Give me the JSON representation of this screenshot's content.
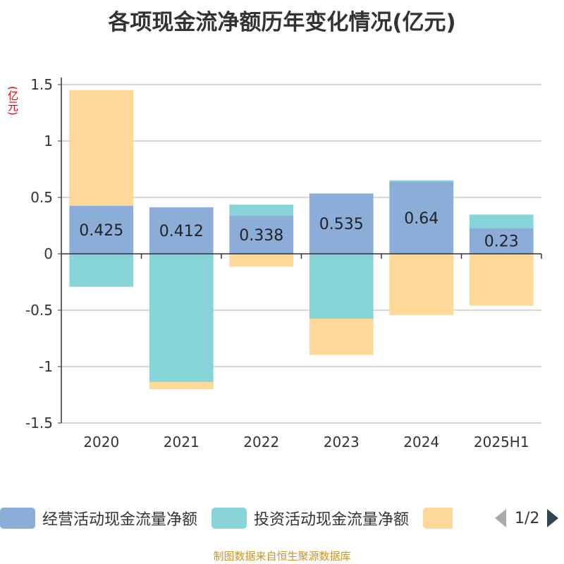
{
  "chart_data": {
    "type": "bar",
    "stacked": true,
    "title": "各项现金流净额历年变化情况(亿元)",
    "ylabel": "(亿元)",
    "categories": [
      "2020",
      "2021",
      "2022",
      "2023",
      "2024",
      "2025H1"
    ],
    "ylim": [
      -1.5,
      1.5
    ],
    "yticks": [
      -1.5,
      -1,
      -0.5,
      0,
      0.5,
      1,
      1.5
    ],
    "ytick_labels": [
      "-1.5",
      "-1",
      "-0.5",
      "0",
      "0.5",
      "1",
      "1.5"
    ],
    "grid": true,
    "legend_position": "bottom",
    "series": [
      {
        "name": "经营活动现金流量净额",
        "color": "#8dadd9",
        "values": [
          0.425,
          0.412,
          0.338,
          0.535,
          0.64,
          0.23
        ],
        "labels": [
          "0.425",
          "0.412",
          "0.338",
          "0.535",
          "0.64",
          "0.23"
        ]
      },
      {
        "name": "投资活动现金流量净额",
        "color": "#87d5d8",
        "values": [
          -0.292,
          -1.137,
          0.098,
          -0.575,
          0.012,
          0.118
        ]
      },
      {
        "name": "",
        "color": "#fed898",
        "values": [
          1.027,
          -0.064,
          -0.114,
          -0.321,
          -0.542,
          -0.46
        ]
      }
    ]
  },
  "legend_pager": "1/2",
  "source": "制图数据来自恒生聚源数据库"
}
